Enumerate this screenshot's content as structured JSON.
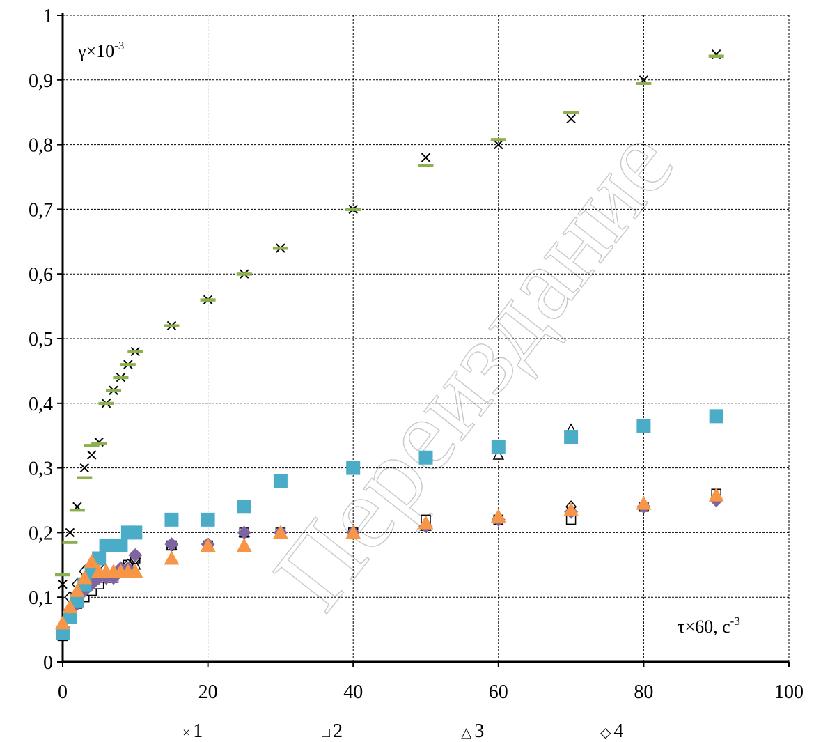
{
  "chart_data": {
    "type": "scatter",
    "ylabel_base": "γ×10",
    "ylabel_exp": "-3",
    "xlabel_base": "τ×60, с",
    "xlabel_exp": "-3",
    "xlim": [
      0,
      100
    ],
    "ylim": [
      0,
      1
    ],
    "x_ticks": [
      0,
      20,
      40,
      60,
      80,
      100
    ],
    "x_tick_labels": [
      "0",
      "20",
      "40",
      "60",
      "80",
      "100"
    ],
    "y_ticks": [
      0,
      0.1,
      0.2,
      0.3,
      0.4,
      0.5,
      0.6,
      0.7,
      0.8,
      0.9,
      1
    ],
    "y_tick_labels": [
      "0",
      "0,1",
      "0,2",
      "0,3",
      "0,4",
      "0,5",
      "0,6",
      "0,7",
      "0,8",
      "0,9",
      "1"
    ],
    "grid": true,
    "legend": [
      {
        "marker": "×",
        "label": "1"
      },
      {
        "marker": "□",
        "label": "2"
      },
      {
        "marker": "△",
        "label": "3"
      },
      {
        "marker": "◇",
        "label": "4"
      }
    ],
    "watermark": "Переиздание",
    "series": [
      {
        "marker": "x",
        "color": "#000000",
        "x": [
          0,
          1,
          2,
          3,
          4,
          5,
          6,
          7,
          8,
          9,
          10,
          15,
          20,
          25,
          30,
          40,
          50,
          60,
          70,
          80,
          90
        ],
        "y": [
          0.12,
          0.2,
          0.24,
          0.3,
          0.32,
          0.34,
          0.4,
          0.42,
          0.44,
          0.46,
          0.48,
          0.52,
          0.56,
          0.6,
          0.64,
          0.7,
          0.78,
          0.8,
          0.84,
          0.9,
          0.94
        ]
      },
      {
        "marker": "dash",
        "color": "#8db04e",
        "x": [
          0,
          1,
          2,
          3,
          4,
          5,
          6,
          7,
          8,
          9,
          10,
          15,
          20,
          25,
          30,
          40,
          50,
          60,
          70,
          80,
          90
        ],
        "y": [
          0.135,
          0.185,
          0.235,
          0.285,
          0.335,
          0.338,
          0.4,
          0.42,
          0.44,
          0.46,
          0.48,
          0.52,
          0.56,
          0.6,
          0.64,
          0.7,
          0.768,
          0.808,
          0.85,
          0.895,
          0.937
        ]
      },
      {
        "marker": "square-open",
        "color": "#000000",
        "x": [
          0,
          1,
          2,
          3,
          4,
          5,
          6,
          7,
          8,
          9,
          10,
          15,
          20,
          25,
          30,
          40,
          50,
          60,
          70,
          80,
          90
        ],
        "y": [
          0.04,
          0.07,
          0.09,
          0.1,
          0.11,
          0.12,
          0.13,
          0.13,
          0.14,
          0.15,
          0.16,
          0.18,
          0.18,
          0.2,
          0.2,
          0.2,
          0.22,
          0.22,
          0.22,
          0.24,
          0.26
        ]
      },
      {
        "marker": "triangle-open",
        "color": "#000000",
        "x": [
          0,
          1,
          2,
          3,
          4,
          5,
          6,
          7,
          8,
          9,
          10,
          15,
          20,
          25,
          30,
          40,
          50,
          60,
          70,
          80,
          90
        ],
        "y": [
          0.05,
          0.08,
          0.1,
          0.12,
          0.13,
          0.14,
          0.14,
          0.14,
          0.14,
          0.15,
          0.15,
          0.18,
          0.18,
          0.2,
          0.2,
          0.2,
          0.21,
          0.32,
          0.36,
          0.24,
          0.26
        ]
      },
      {
        "marker": "diamond-open",
        "color": "#000000",
        "x": [
          0,
          1,
          2,
          3,
          4,
          5,
          6,
          7,
          8,
          9,
          10,
          15,
          20,
          25,
          30,
          40,
          50,
          60,
          70,
          80,
          90
        ],
        "y": [
          0.05,
          0.1,
          0.12,
          0.14,
          0.14,
          0.15,
          0.13,
          0.13,
          0.14,
          0.15,
          0.16,
          0.18,
          0.18,
          0.2,
          0.2,
          0.2,
          0.21,
          0.22,
          0.24,
          0.24,
          0.25
        ]
      },
      {
        "marker": "diamond-filled",
        "color": "#7e64a0",
        "x": [
          0,
          1,
          2,
          3,
          4,
          5,
          6,
          7,
          8,
          9,
          10,
          15,
          20,
          25,
          30,
          40,
          50,
          60,
          70,
          80,
          90
        ],
        "y": [
          0.05,
          0.08,
          0.09,
          0.11,
          0.12,
          0.13,
          0.13,
          0.13,
          0.145,
          0.145,
          0.165,
          0.182,
          0.182,
          0.2,
          0.2,
          0.2,
          0.21,
          0.22,
          0.232,
          0.24,
          0.25
        ]
      },
      {
        "marker": "square-filled",
        "color": "#4aacc6",
        "x": [
          0,
          1,
          2,
          3,
          4,
          5,
          6,
          7,
          8,
          9,
          10,
          15,
          20,
          25,
          30,
          40,
          50,
          60,
          70,
          80,
          90
        ],
        "y": [
          0.045,
          0.07,
          0.095,
          0.12,
          0.14,
          0.16,
          0.18,
          0.18,
          0.18,
          0.2,
          0.2,
          0.22,
          0.22,
          0.24,
          0.28,
          0.3,
          0.316,
          0.333,
          0.348,
          0.365,
          0.38
        ]
      },
      {
        "marker": "triangle-filled",
        "color": "#f79646",
        "x": [
          0,
          1,
          2,
          3,
          4,
          5,
          6,
          7,
          8,
          9,
          10,
          15,
          20,
          25,
          30,
          40,
          50,
          60,
          70,
          80,
          90
        ],
        "y": [
          0.06,
          0.085,
          0.11,
          0.13,
          0.155,
          0.14,
          0.14,
          0.14,
          0.14,
          0.14,
          0.14,
          0.16,
          0.18,
          0.18,
          0.2,
          0.2,
          0.215,
          0.225,
          0.235,
          0.245,
          0.258
        ]
      }
    ]
  }
}
